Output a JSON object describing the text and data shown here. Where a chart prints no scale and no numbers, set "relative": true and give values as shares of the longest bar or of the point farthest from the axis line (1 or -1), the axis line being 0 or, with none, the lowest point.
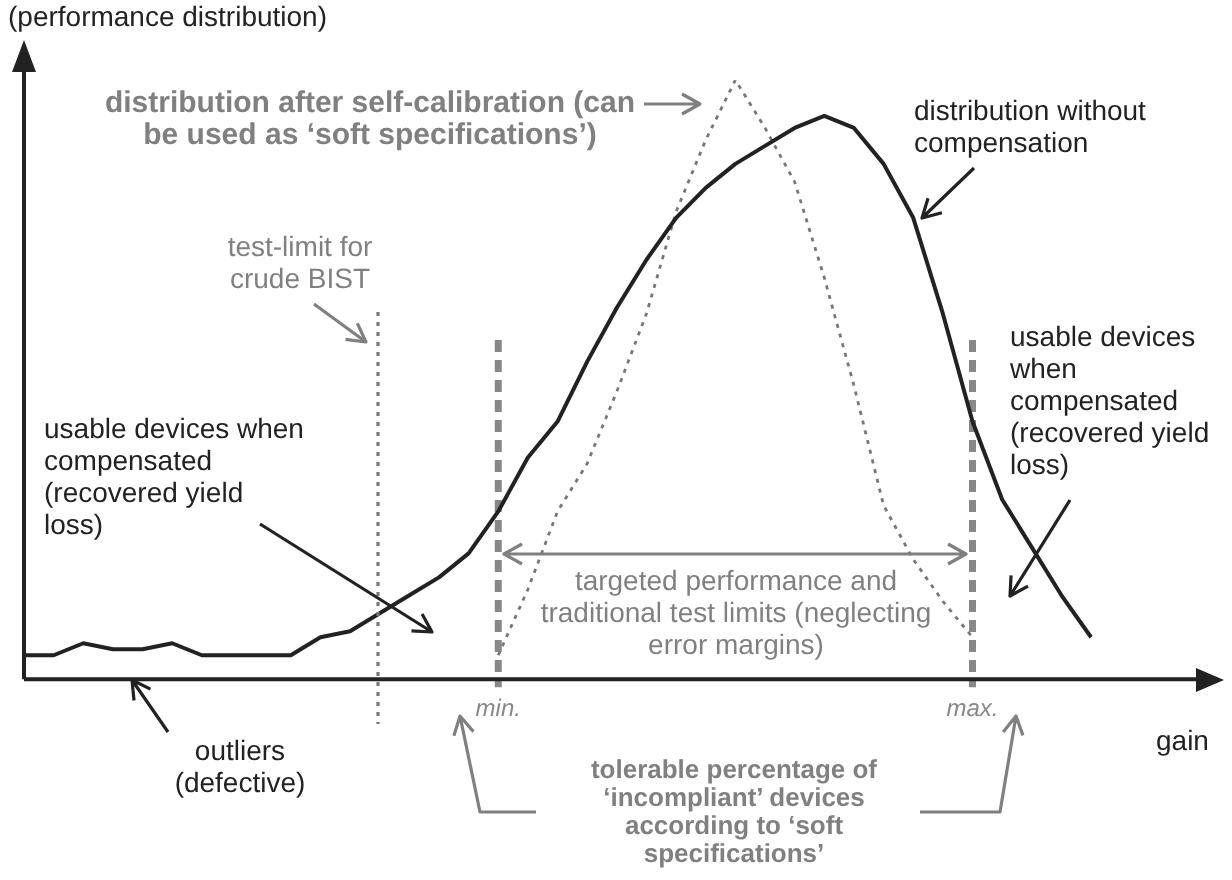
{
  "chart_data": {
    "type": "line",
    "relative": true,
    "ylabel": "(performance distribution)",
    "xlabel": "gain",
    "tick_labels": "x",
    "marker": "none",
    "categories": [
      null,
      null,
      null,
      null,
      null,
      null,
      null,
      null,
      null,
      null,
      null,
      null,
      null,
      null,
      null,
      null,
      "min.",
      null,
      null,
      null,
      null,
      null,
      null,
      null,
      null,
      null,
      null,
      null,
      null,
      null,
      null,
      null,
      "max.",
      null,
      null,
      null,
      null,
      null,
      null,
      null
    ],
    "series": [
      {
        "color": "#222222",
        "line_style": "solid",
        "values": [
          0.04,
          0.04,
          0.06,
          0.05,
          0.05,
          0.06,
          0.04,
          0.04,
          0.04,
          0.04,
          0.07,
          0.08,
          0.11,
          0.14,
          0.17,
          0.21,
          0.28,
          0.37,
          0.43,
          0.53,
          0.62,
          0.7,
          0.77,
          0.82,
          0.86,
          0.89,
          0.92,
          0.94,
          0.92,
          0.86,
          0.77,
          0.61,
          0.43,
          0.3,
          0.22,
          0.14,
          0.07,
          null,
          null,
          null
        ]
      },
      {
        "color": "#777777",
        "line_style": "dotted",
        "values": [
          null,
          null,
          null,
          null,
          null,
          null,
          null,
          null,
          null,
          null,
          null,
          null,
          null,
          null,
          null,
          null,
          0.04,
          0.15,
          0.28,
          0.36,
          0.48,
          0.61,
          0.78,
          0.9,
          1.0,
          0.92,
          0.83,
          0.67,
          0.49,
          0.29,
          0.2,
          0.13,
          0.07,
          null,
          null,
          null,
          null,
          null,
          null,
          null
        ]
      }
    ],
    "ref_lines": [
      {
        "axis": "x",
        "value": "min.",
        "color": "#888888",
        "line_style": "dashed"
      },
      {
        "axis": "x",
        "value": "max.",
        "color": "#888888",
        "line_style": "dashed"
      }
    ],
    "annotations": [
      "distribution after self-calibration (can be used as ‘soft specifications’)",
      "distribution without compensation",
      "test-limit for crude BIST",
      "usable devices when compensated (recovered yield loss)",
      "usable devices when compensated (recovered yield loss)",
      "targeted performance and traditional test limits (neglecting error margins)",
      "outliers (defective)",
      "tolerable percentage of ‘incompliant’ devices according to ‘soft specifications’"
    ]
  }
}
